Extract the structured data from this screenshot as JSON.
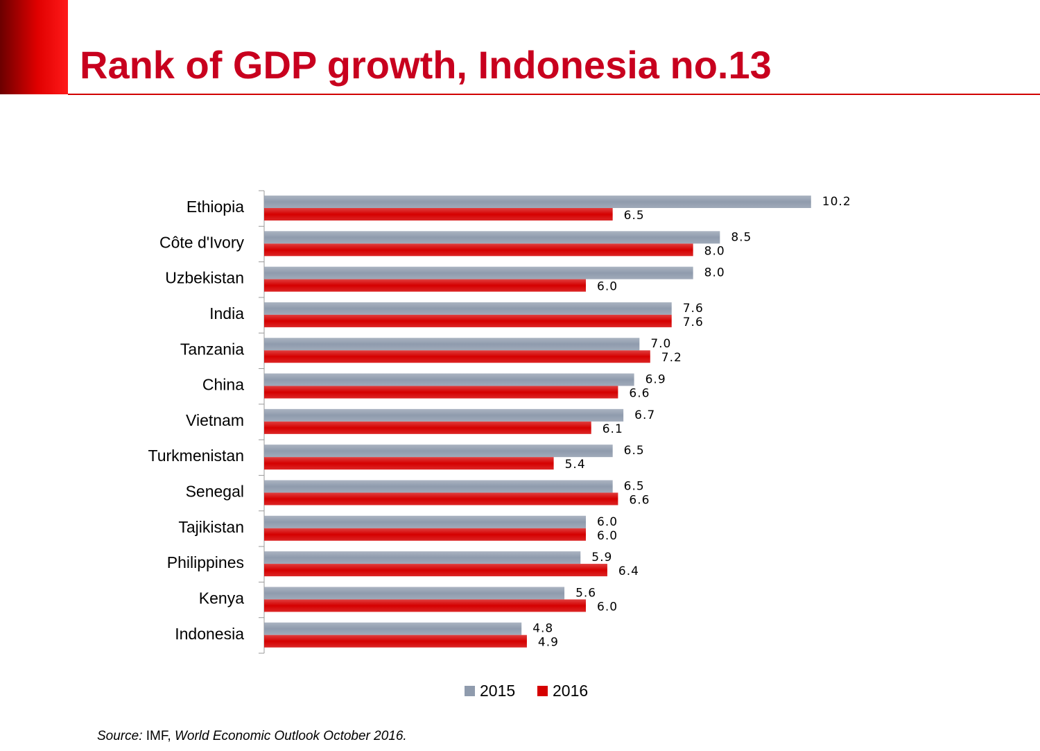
{
  "chart_data": {
    "type": "hbar",
    "title": "Rank of GDP growth, Indonesia no.13",
    "categories": [
      "Ethiopia",
      "Côte d'Ivory",
      "Uzbekistan",
      "India",
      "Tanzania",
      "China",
      "Vietnam",
      "Turkmenistan",
      "Senegal",
      "Tajikistan",
      "Philippines",
      "Kenya",
      "Indonesia"
    ],
    "series": [
      {
        "name": "2015",
        "color": "#8f9bad",
        "values": [
          10.2,
          8.5,
          8.0,
          7.6,
          7.0,
          6.9,
          6.7,
          6.5,
          6.5,
          6.0,
          5.9,
          5.6,
          4.8
        ],
        "value_labels": [
          "10.2",
          "8.5",
          "8.0",
          "7.6",
          "7.0",
          "6.9",
          "6.7",
          "6.5",
          "6.5",
          "6.0",
          "5.9",
          "5.6",
          "4.8"
        ]
      },
      {
        "name": "2016",
        "color": "#d50000",
        "values": [
          6.5,
          8.0,
          6.0,
          7.6,
          7.2,
          6.6,
          6.1,
          5.4,
          6.6,
          6.0,
          6.4,
          6.0,
          4.9
        ],
        "value_labels": [
          "6.5",
          "8.0",
          "6.0",
          "7.6",
          "7.2",
          "6.6",
          "6.1",
          "5.4",
          "6.6",
          "6.0",
          "6.4",
          "6.0",
          "4.9"
        ]
      }
    ],
    "xlim": [
      0,
      12
    ],
    "legend": "bottom",
    "source_label": "Source:",
    "source_org": "IMF,",
    "source_title": "World Economic Outlook October 2016."
  }
}
